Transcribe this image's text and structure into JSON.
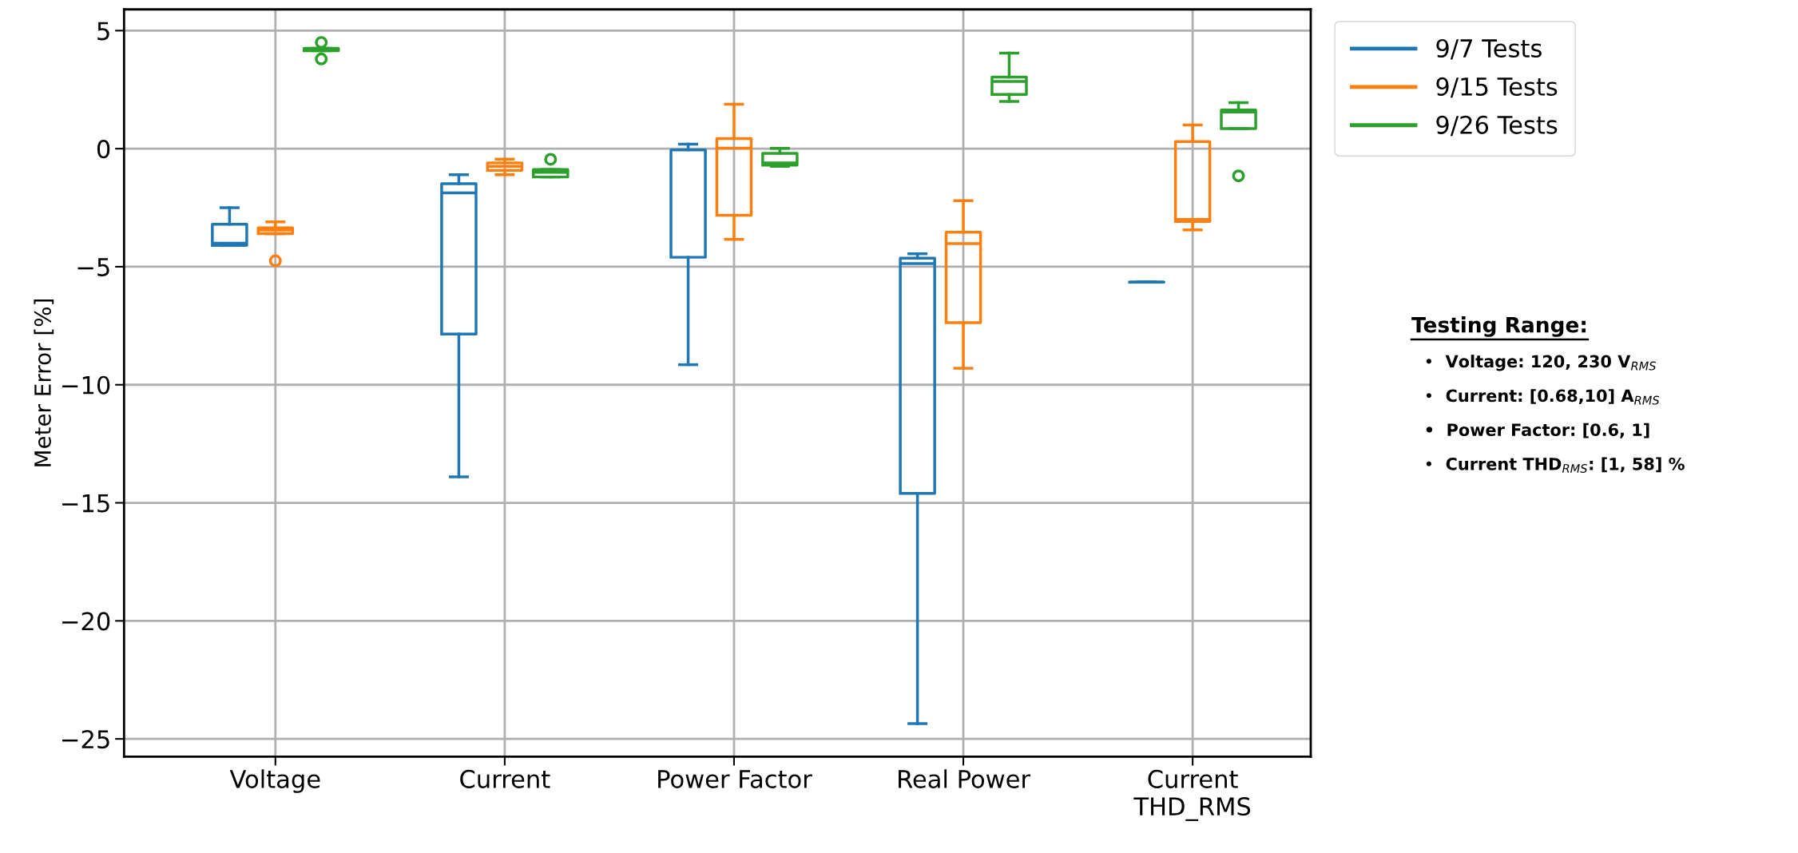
{
  "chart_data": {
    "type": "box",
    "ylabel": "Meter Error [%]",
    "categories": [
      "Voltage",
      "Current",
      "Power Factor",
      "Real Power",
      "Current\nTHD_RMS"
    ],
    "ylim": [
      -25.75,
      5.9
    ],
    "yticks": [
      {
        "value": -25,
        "label": "−25"
      },
      {
        "value": -20,
        "label": "−20"
      },
      {
        "value": -15,
        "label": "−15"
      },
      {
        "value": -10,
        "label": "−10"
      },
      {
        "value": -5,
        "label": "−5"
      },
      0,
      5
    ],
    "grid": true,
    "legend": "top right",
    "marker": "circle",
    "series": [
      {
        "name": "9/7 Tests",
        "color": "#1f77b4",
        "boxes": [
          {
            "low": -4.1,
            "q1": -4.1,
            "median": -4.0,
            "q3": -3.2,
            "high": -2.5
          },
          {
            "low": -13.9,
            "q1": -7.85,
            "median": -1.87,
            "q3": -1.48,
            "high": -1.1
          },
          {
            "low": -9.15,
            "q1": -4.6,
            "median": -0.05,
            "q3": -0.05,
            "high": 0.19
          },
          {
            "low": -24.35,
            "q1": -14.6,
            "median": -4.87,
            "q3": -4.64,
            "high": -4.45
          },
          {
            "low": -5.65,
            "q1": -5.65,
            "median": -5.65,
            "q3": -5.65,
            "high": -5.65
          }
        ]
      },
      {
        "name": "9/15 Tests",
        "color": "#ff7f0e",
        "boxes": [
          {
            "low": -3.6,
            "q1": -3.6,
            "median": -3.45,
            "q3": -3.35,
            "high": -3.1,
            "outliers": [
              -4.75
            ]
          },
          {
            "low": -1.1,
            "q1": -0.92,
            "median": -0.75,
            "q3": -0.6,
            "high": -0.44
          },
          {
            "low": -3.84,
            "q1": -2.82,
            "median": 0.02,
            "q3": 0.43,
            "high": 1.88
          },
          {
            "low": -9.3,
            "q1": -7.37,
            "median": -4.02,
            "q3": -3.54,
            "high": -2.2
          },
          {
            "low": -3.44,
            "q1": -3.08,
            "median": -3.0,
            "q3": 0.3,
            "high": 1.0
          }
        ]
      },
      {
        "name": "9/26 Tests",
        "color": "#2ca02c",
        "boxes": [
          {
            "low": 4.15,
            "q1": 4.15,
            "median": 4.2,
            "q3": 4.25,
            "high": 4.25,
            "outliers": [
              4.5,
              3.8
            ]
          },
          {
            "low": -1.2,
            "q1": -1.2,
            "median": -1.0,
            "q3": -0.88,
            "high": -0.88,
            "outliers": [
              -0.45
            ]
          },
          {
            "low": -0.75,
            "q1": -0.7,
            "median": -0.6,
            "q3": -0.2,
            "high": 0.01
          },
          {
            "low": 2.0,
            "q1": 2.3,
            "median": 2.85,
            "q3": 3.03,
            "high": 4.05
          },
          {
            "low": 0.85,
            "q1": 0.85,
            "median": 1.55,
            "q3": 1.64,
            "high": 1.95,
            "outliers": [
              -1.15
            ]
          }
        ]
      }
    ],
    "annotations": [
      "Testing Range:",
      "•  Voltage: 120, 230 V$_{RMS}$",
      "•  Current: [0.68,10] A$_{RMS}$",
      "•  Power Factor: [0.6, 1]",
      "•  Current THD$_{RMS}$: [1, 58] %"
    ]
  }
}
